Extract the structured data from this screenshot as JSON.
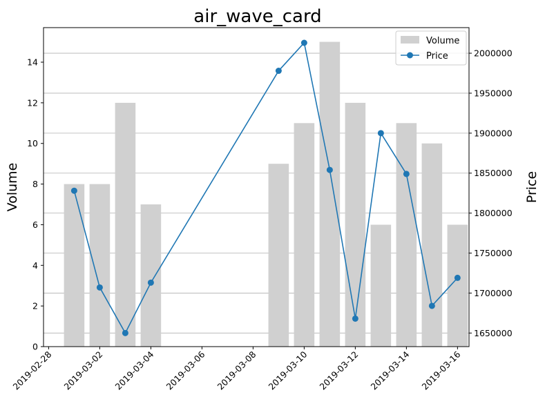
{
  "chart_data": {
    "type": "bar+line",
    "title": "air_wave_card",
    "xlabel": "",
    "ylabel_left": "Volume",
    "ylabel_right": "Price",
    "x_tick_labels": [
      "2019-02-28",
      "2019-03-02",
      "2019-03-04",
      "2019-03-06",
      "2019-03-08",
      "2019-03-10",
      "2019-03-12",
      "2019-03-14",
      "2019-03-16"
    ],
    "x_tick_dates": [
      "2019-02-28",
      "2019-03-02",
      "2019-03-04",
      "2019-03-06",
      "2019-03-08",
      "2019-03-10",
      "2019-03-12",
      "2019-03-14",
      "2019-03-16"
    ],
    "x_range": [
      "2019-02-28",
      "2019-03-16"
    ],
    "ylim_left": [
      0,
      15.7
    ],
    "y_ticks_left": [
      0,
      2,
      4,
      6,
      8,
      10,
      12,
      14
    ],
    "ylim_right": [
      1633000,
      2032000
    ],
    "y_ticks_right": [
      1650000,
      1700000,
      1750000,
      1800000,
      1850000,
      1900000,
      1950000,
      2000000
    ],
    "grid": "horizontal lines at right-axis ticks",
    "legend_position": "top-right",
    "colors": {
      "volume": "#d0d0d0",
      "price": "#1f77b4"
    },
    "series": [
      {
        "name": "Volume",
        "kind": "bar",
        "axis": "left",
        "dates": [
          "2019-03-01",
          "2019-03-02",
          "2019-03-03",
          "2019-03-04",
          "2019-03-09",
          "2019-03-10",
          "2019-03-11",
          "2019-03-12",
          "2019-03-13",
          "2019-03-14",
          "2019-03-15",
          "2019-03-16"
        ],
        "values": [
          8,
          8,
          12,
          7,
          9,
          11,
          15,
          12,
          6,
          11,
          10,
          6
        ]
      },
      {
        "name": "Price",
        "kind": "line",
        "axis": "right",
        "dates": [
          "2019-03-01",
          "2019-03-02",
          "2019-03-03",
          "2019-03-04",
          "2019-03-09",
          "2019-03-10",
          "2019-03-11",
          "2019-03-12",
          "2019-03-13",
          "2019-03-14",
          "2019-03-15",
          "2019-03-16"
        ],
        "values": [
          1828000,
          1707000,
          1650000,
          1713000,
          1978000,
          2013000,
          1854000,
          1668000,
          1900000,
          1849000,
          1684000,
          1719000
        ]
      }
    ]
  }
}
